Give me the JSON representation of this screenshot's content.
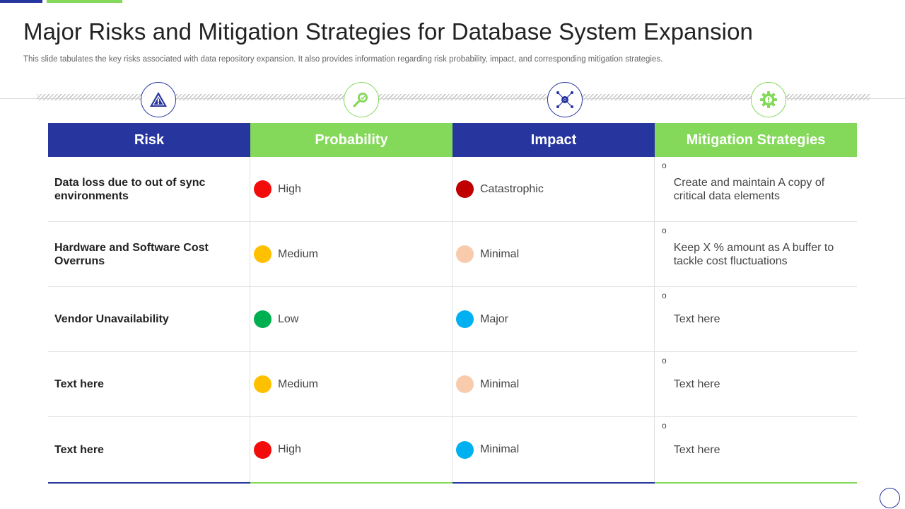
{
  "slide": {
    "title": "Major Risks and Mitigation Strategies for Database System Expansion",
    "subtitle": "This slide tabulates the key risks associated with data repository expansion. It also provides information regarding risk probability, impact, and corresponding mitigation strategies."
  },
  "colors": {
    "accent_blue": "#27359f",
    "accent_green": "#84d85a"
  },
  "icons": [
    "warning-icon",
    "search-icon",
    "network-icon",
    "gear-icon"
  ],
  "table": {
    "headers": [
      "Risk",
      "Probability",
      "Impact",
      "Mitigation Strategies"
    ],
    "rows": [
      {
        "risk": "Data loss due to out of sync environments",
        "probability": {
          "label": "High",
          "color": "#f20c0c"
        },
        "impact": {
          "label": "Catastrophic",
          "color": "#c00000"
        },
        "mitigation": "Create and maintain A copy of critical data elements"
      },
      {
        "risk": "Hardware and Software Cost Overruns",
        "probability": {
          "label": "Medium",
          "color": "#ffc000"
        },
        "impact": {
          "label": "Minimal",
          "color": "#f8cbad"
        },
        "mitigation": "Keep X % amount as A buffer to tackle cost fluctuations"
      },
      {
        "risk": "Vendor Unavailability",
        "probability": {
          "label": "Low",
          "color": "#00b050"
        },
        "impact": {
          "label": "Major",
          "color": "#00b0f0"
        },
        "mitigation": "Text here"
      },
      {
        "risk": "Text here",
        "probability": {
          "label": "Medium",
          "color": "#ffc000"
        },
        "impact": {
          "label": "Minimal",
          "color": "#f8cbad"
        },
        "mitigation": "Text here"
      },
      {
        "risk": "Text here",
        "probability": {
          "label": "High",
          "color": "#f20c0c"
        },
        "impact": {
          "label": "Minimal",
          "color": "#00b0f0"
        },
        "mitigation": "Text here"
      }
    ]
  }
}
